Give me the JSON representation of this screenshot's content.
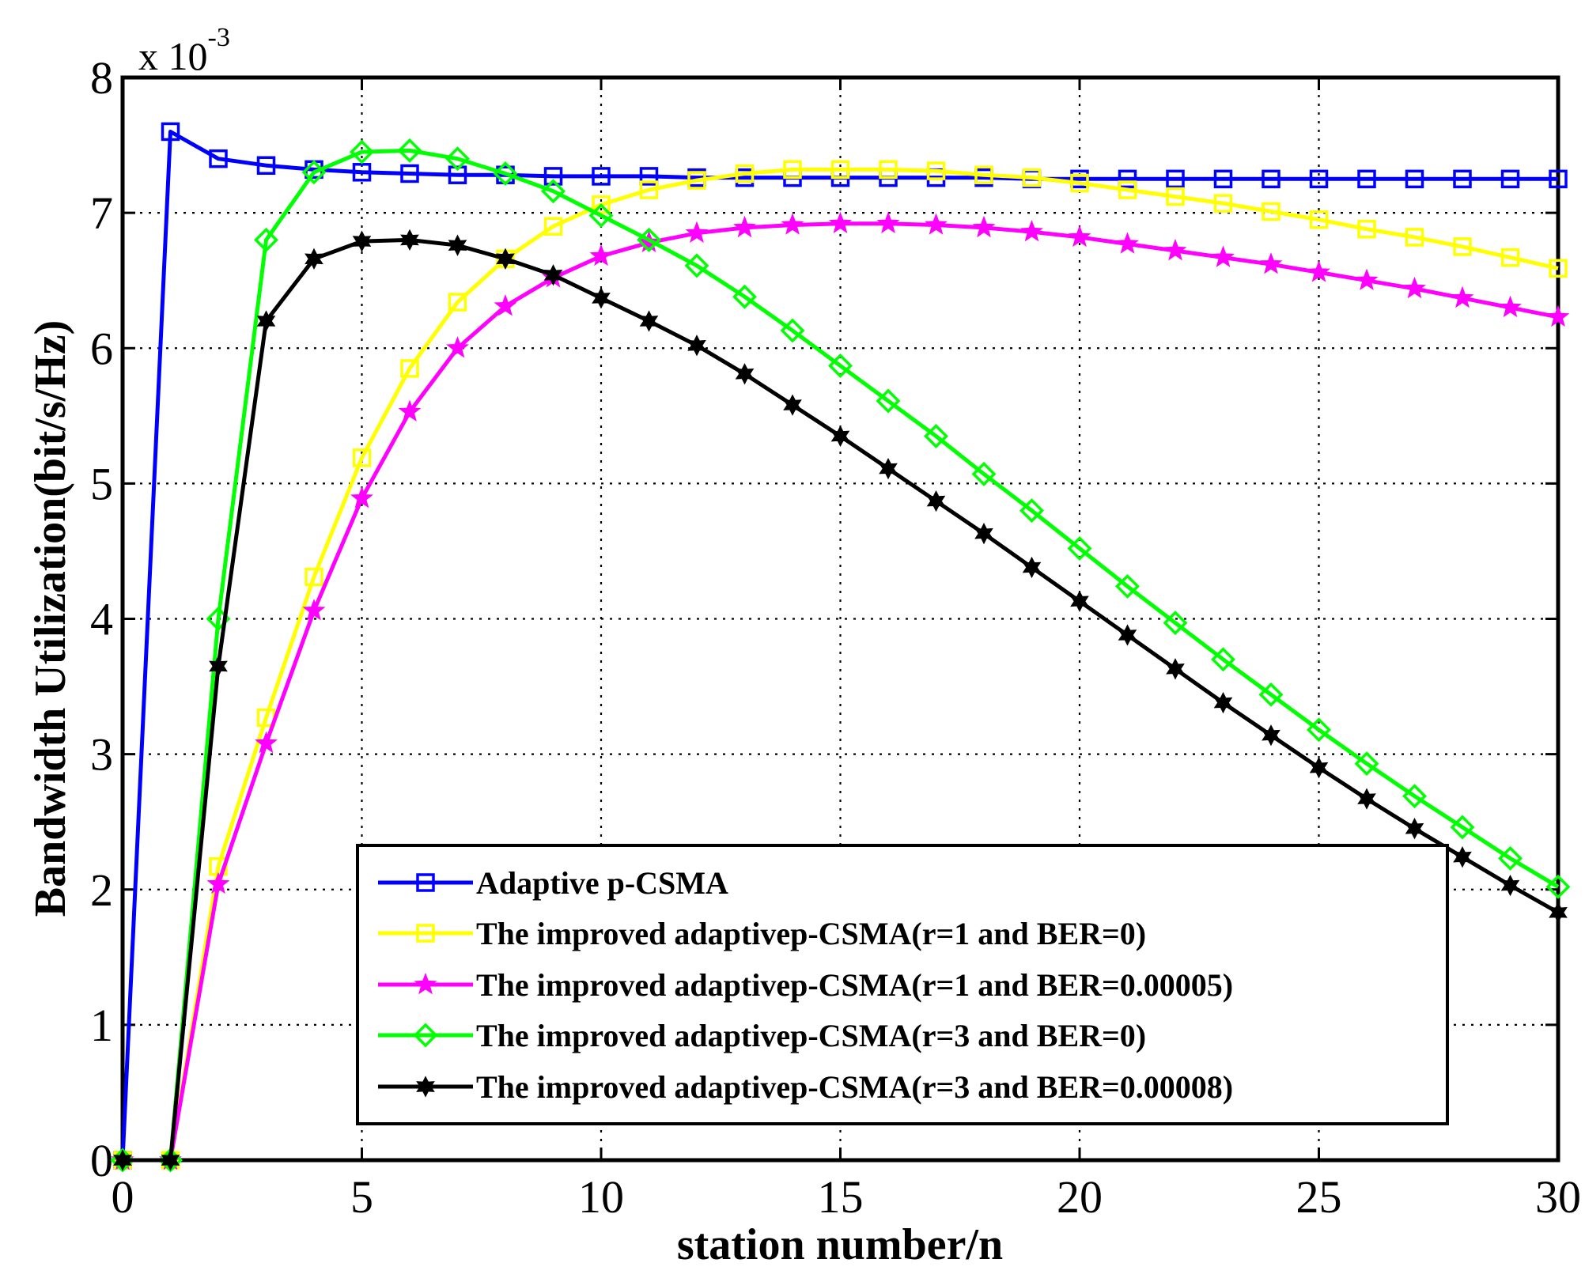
{
  "chart_data": {
    "type": "line",
    "title": "",
    "xlabel": "station number/n",
    "ylabel": "Bandwidth Utilization(bit/s/Hz)",
    "y_multiplier_prefix": "x 10",
    "y_multiplier_exponent": "-3",
    "xlim": [
      0,
      30
    ],
    "ylim": [
      0,
      8
    ],
    "xticks": [
      0,
      5,
      10,
      15,
      20,
      25,
      30
    ],
    "yticks": [
      0,
      1,
      2,
      3,
      4,
      5,
      6,
      7,
      8
    ],
    "grid": true,
    "legend_position": "bottom-right",
    "x": [
      0,
      1,
      2,
      3,
      4,
      5,
      6,
      7,
      8,
      9,
      10,
      11,
      12,
      13,
      14,
      15,
      16,
      17,
      18,
      19,
      20,
      21,
      22,
      23,
      24,
      25,
      26,
      27,
      28,
      29,
      30
    ],
    "series": [
      {
        "name": "Adaptive p-CSMA",
        "color": "#0000ff",
        "marker": "square",
        "values": [
          0,
          7.6,
          7.4,
          7.35,
          7.32,
          7.3,
          7.29,
          7.28,
          7.28,
          7.27,
          7.27,
          7.27,
          7.26,
          7.26,
          7.26,
          7.26,
          7.26,
          7.26,
          7.26,
          7.25,
          7.25,
          7.25,
          7.25,
          7.25,
          7.25,
          7.25,
          7.25,
          7.25,
          7.25,
          7.25,
          7.25
        ]
      },
      {
        "name": "The improved adaptivep-CSMA(r=1 and BER=0)",
        "color": "#ffff00",
        "marker": "square",
        "values": [
          0,
          0,
          2.17,
          3.27,
          4.31,
          5.19,
          5.85,
          6.34,
          6.66,
          6.9,
          7.06,
          7.17,
          7.24,
          7.29,
          7.32,
          7.32,
          7.32,
          7.31,
          7.28,
          7.26,
          7.22,
          7.17,
          7.12,
          7.07,
          7.01,
          6.95,
          6.88,
          6.82,
          6.75,
          6.67,
          6.59
        ]
      },
      {
        "name": "The improved adaptivep-CSMA(r=1 and BER=0.00005)",
        "color": "#ff00ff",
        "marker": "star",
        "values": [
          0,
          0,
          2.04,
          3.08,
          4.06,
          4.89,
          5.53,
          6.0,
          6.31,
          6.52,
          6.68,
          6.78,
          6.85,
          6.89,
          6.91,
          6.92,
          6.92,
          6.91,
          6.89,
          6.86,
          6.82,
          6.77,
          6.72,
          6.67,
          6.62,
          6.56,
          6.5,
          6.44,
          6.37,
          6.3,
          6.23
        ]
      },
      {
        "name": "The improved adaptivep-CSMA(r=3 and BER=0)",
        "color": "#00ff00",
        "marker": "diamond",
        "values": [
          0,
          0,
          4.0,
          6.8,
          7.3,
          7.45,
          7.46,
          7.4,
          7.29,
          7.16,
          6.98,
          6.8,
          6.61,
          6.38,
          6.13,
          5.87,
          5.61,
          5.35,
          5.07,
          4.8,
          4.52,
          4.24,
          3.97,
          3.7,
          3.44,
          3.18,
          2.93,
          2.69,
          2.46,
          2.23,
          2.02
        ]
      },
      {
        "name": "The improved adaptivep-CSMA(r=3 and BER=0.00008)",
        "color": "#000000",
        "marker": "hexstar",
        "values": [
          0,
          0,
          3.65,
          6.2,
          6.66,
          6.79,
          6.8,
          6.76,
          6.66,
          6.54,
          6.37,
          6.2,
          6.02,
          5.81,
          5.58,
          5.35,
          5.11,
          4.87,
          4.63,
          4.38,
          4.13,
          3.88,
          3.63,
          3.38,
          3.14,
          2.9,
          2.67,
          2.45,
          2.24,
          2.03,
          1.83
        ]
      }
    ]
  }
}
